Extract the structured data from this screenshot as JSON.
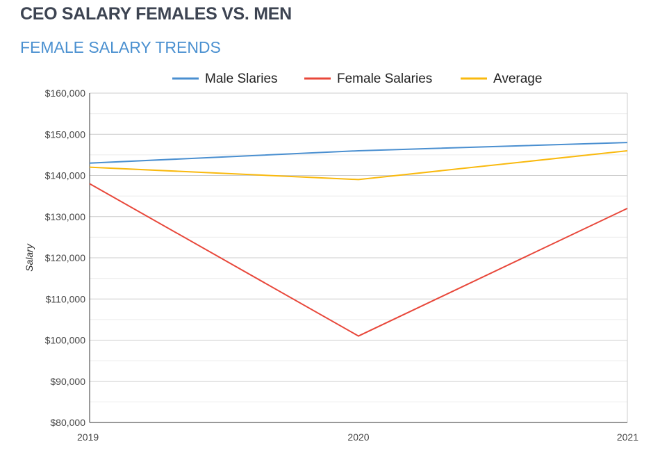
{
  "title": "CEO SALARY FEMALES VS. MEN",
  "subtitle": "FEMALE SALARY TRENDS",
  "chart_data": {
    "type": "line",
    "title": "",
    "xlabel": "",
    "ylabel": "Salary",
    "categories": [
      "2019",
      "2020",
      "2021"
    ],
    "ylim": [
      80000,
      160000
    ],
    "yticks": [
      80000,
      90000,
      100000,
      110000,
      120000,
      130000,
      140000,
      150000,
      160000
    ],
    "ytick_labels": [
      "$80,000",
      "$90,000",
      "$100,000",
      "$110,000",
      "$120,000",
      "$130,000",
      "$140,000",
      "$150,000",
      "$160,000"
    ],
    "grid": true,
    "legend": "top",
    "series": [
      {
        "name": "Male Slaries",
        "color": "#4a8fd0",
        "values": [
          143000,
          146000,
          148000
        ]
      },
      {
        "name": "Female Salaries",
        "color": "#e8473a",
        "values": [
          138000,
          101000,
          132000
        ]
      },
      {
        "name": "Average",
        "color": "#f9b90e",
        "values": [
          142000,
          139000,
          146000
        ]
      }
    ]
  }
}
